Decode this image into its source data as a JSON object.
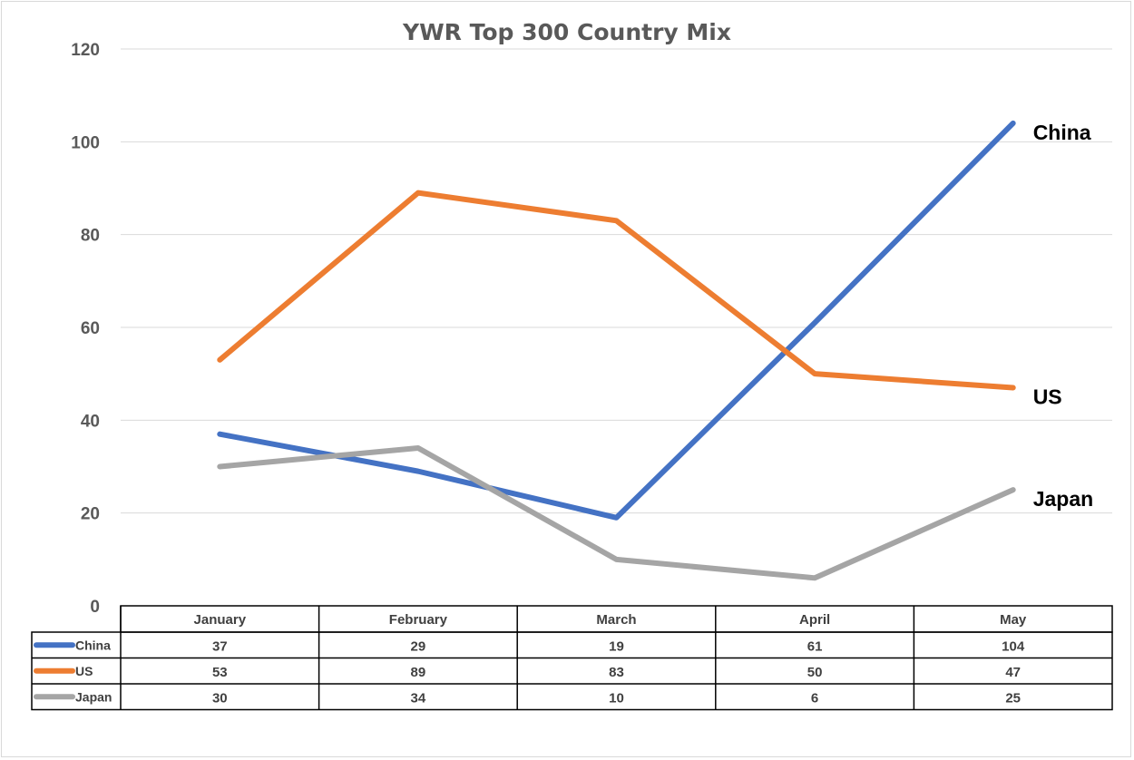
{
  "chart_data": {
    "type": "line",
    "title": "YWR Top 300 Country Mix",
    "categories": [
      "January",
      "February",
      "March",
      "April",
      "May"
    ],
    "series": [
      {
        "name": "China",
        "values": [
          37,
          29,
          19,
          61,
          104
        ],
        "color": "#4472c4"
      },
      {
        "name": "US",
        "values": [
          53,
          89,
          83,
          50,
          47
        ],
        "color": "#ed7d31"
      },
      {
        "name": "Japan",
        "values": [
          30,
          34,
          10,
          6,
          25
        ],
        "color": "#a5a5a5"
      }
    ],
    "ylim": [
      0,
      120
    ],
    "yticks": [
      0,
      20,
      40,
      60,
      80,
      100,
      120
    ],
    "grid": true,
    "legend": "data-table",
    "end_labels": true
  }
}
